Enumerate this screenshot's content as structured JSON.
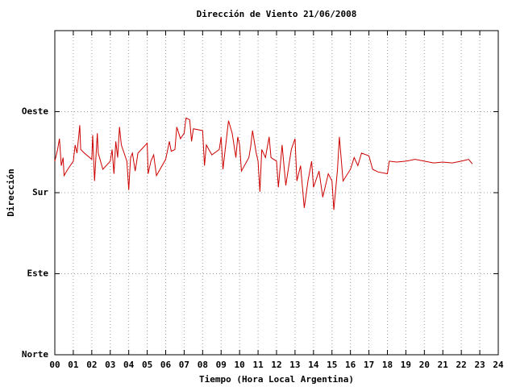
{
  "chart_data": {
    "type": "line",
    "title": "Dirección de Viento 21/06/2008",
    "xlabel": "Tiempo (Hora Local Argentina)",
    "ylabel": "Dirección",
    "x": [
      0,
      0.15,
      0.25,
      0.35,
      0.45,
      0.5,
      0.7,
      1.0,
      1.1,
      1.2,
      1.3,
      1.35,
      1.4,
      1.6,
      2.0,
      2.05,
      2.15,
      2.3,
      2.35,
      2.6,
      3.0,
      3.1,
      3.2,
      3.3,
      3.4,
      3.5,
      3.6,
      3.9,
      4.0,
      4.1,
      4.2,
      4.35,
      4.5,
      5.0,
      5.05,
      5.2,
      5.35,
      5.5,
      6.0,
      6.2,
      6.3,
      6.5,
      6.6,
      6.8,
      7.0,
      7.1,
      7.3,
      7.4,
      7.5,
      8.0,
      8.1,
      8.2,
      8.5,
      8.9,
      9.0,
      9.1,
      9.4,
      9.6,
      9.8,
      9.9,
      10.0,
      10.1,
      10.5,
      10.6,
      10.7,
      10.9,
      11.0,
      11.1,
      11.2,
      11.4,
      11.6,
      11.7,
      12.0,
      12.1,
      12.3,
      12.5,
      12.8,
      13.0,
      13.1,
      13.3,
      13.5,
      13.7,
      13.9,
      14.0,
      14.3,
      14.5,
      14.8,
      15.0,
      15.1,
      15.3,
      15.4,
      15.6,
      16.0,
      16.2,
      16.4,
      16.6,
      17.0,
      17.2,
      17.5,
      18.0,
      18.1,
      18.5,
      19.0,
      19.5,
      20.0,
      20.5,
      21.0,
      21.5,
      22.0,
      22.4,
      22.6
    ],
    "series": [
      {
        "name": "Dirección",
        "color": "#cc0000",
        "values": [
          215,
          228,
          240,
          210,
          219,
          199,
          206,
          215,
          233,
          224,
          244,
          255,
          228,
          224,
          217,
          244,
          193,
          246,
          224,
          206,
          215,
          228,
          201,
          237,
          219,
          253,
          233,
          215,
          183,
          219,
          224,
          204,
          224,
          235,
          201,
          215,
          222,
          199,
          217,
          237,
          226,
          228,
          253,
          240,
          246,
          263,
          261,
          237,
          251,
          249,
          210,
          233,
          222,
          228,
          242,
          206,
          260,
          246,
          219,
          242,
          233,
          204,
          219,
          231,
          249,
          224,
          215,
          181,
          228,
          219,
          242,
          219,
          215,
          186,
          233,
          188,
          228,
          240,
          193,
          210,
          163,
          193,
          215,
          186,
          204,
          175,
          201,
          193,
          161,
          206,
          242,
          193,
          206,
          219,
          210,
          224,
          221,
          206,
          203,
          201,
          215,
          214,
          215,
          217,
          215,
          213,
          214,
          213,
          215,
          217,
          212
        ]
      }
    ],
    "xlim": [
      0,
      24
    ],
    "xticks": [
      {
        "value": 0,
        "label": "00"
      },
      {
        "value": 1,
        "label": "01"
      },
      {
        "value": 2,
        "label": "02"
      },
      {
        "value": 3,
        "label": "03"
      },
      {
        "value": 4,
        "label": "04"
      },
      {
        "value": 5,
        "label": "05"
      },
      {
        "value": 6,
        "label": "06"
      },
      {
        "value": 7,
        "label": "07"
      },
      {
        "value": 8,
        "label": "08"
      },
      {
        "value": 9,
        "label": "09"
      },
      10,
      11,
      12,
      13,
      14,
      15,
      16,
      17,
      18,
      19,
      20,
      21,
      22,
      23,
      24
    ],
    "ylim": [
      0,
      360
    ],
    "yticks": [
      {
        "value": 0,
        "label": "Norte"
      },
      {
        "value": 90,
        "label": "Este"
      },
      {
        "value": 180,
        "label": "Sur"
      },
      {
        "value": 270,
        "label": "Oeste"
      }
    ],
    "grid": true
  }
}
